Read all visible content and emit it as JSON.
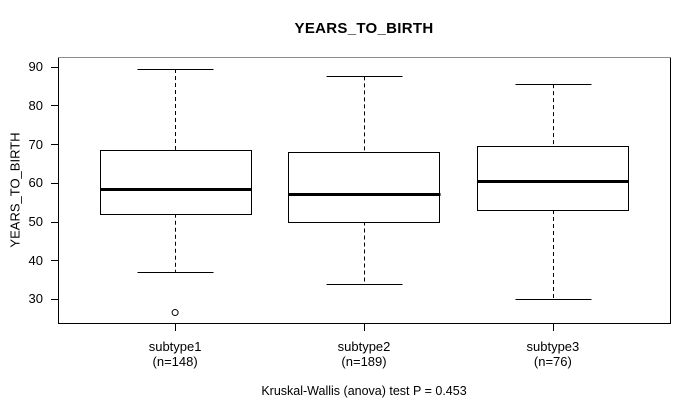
{
  "chart_data": {
    "type": "boxplot",
    "title": "YEARS_TO_BIRTH",
    "ylabel": "YEARS_TO_BIRTH",
    "xlabel": "",
    "caption": "Kruskal-Wallis (anova) test P = 0.453",
    "ylim": [
      23.8,
      92.5
    ],
    "yticks": [
      90,
      80,
      70,
      60,
      50,
      40,
      30
    ],
    "grid": false,
    "legend": "none",
    "colors": {
      "stroke": "#000000",
      "box_fill": "#ffffff",
      "frame_top": "#8c8c8c",
      "background": "#ffffff"
    },
    "groups": [
      {
        "label": "subtype1",
        "sublabel": "(n=148)",
        "n": 148,
        "whisker_low": 37,
        "q1": 52,
        "median": 58.5,
        "q3": 68.5,
        "whisker_high": 89.4,
        "outliers": [
          26.5
        ]
      },
      {
        "label": "subtype2",
        "sublabel": "(n=189)",
        "n": 189,
        "whisker_low": 34,
        "q1": 50,
        "median": 57,
        "q3": 68,
        "whisker_high": 87.5,
        "outliers": []
      },
      {
        "label": "subtype3",
        "sublabel": "(n=76)",
        "n": 76,
        "whisker_low": 30,
        "q1": 53,
        "median": 60.5,
        "q3": 69.5,
        "whisker_high": 85.5,
        "outliers": []
      }
    ]
  }
}
